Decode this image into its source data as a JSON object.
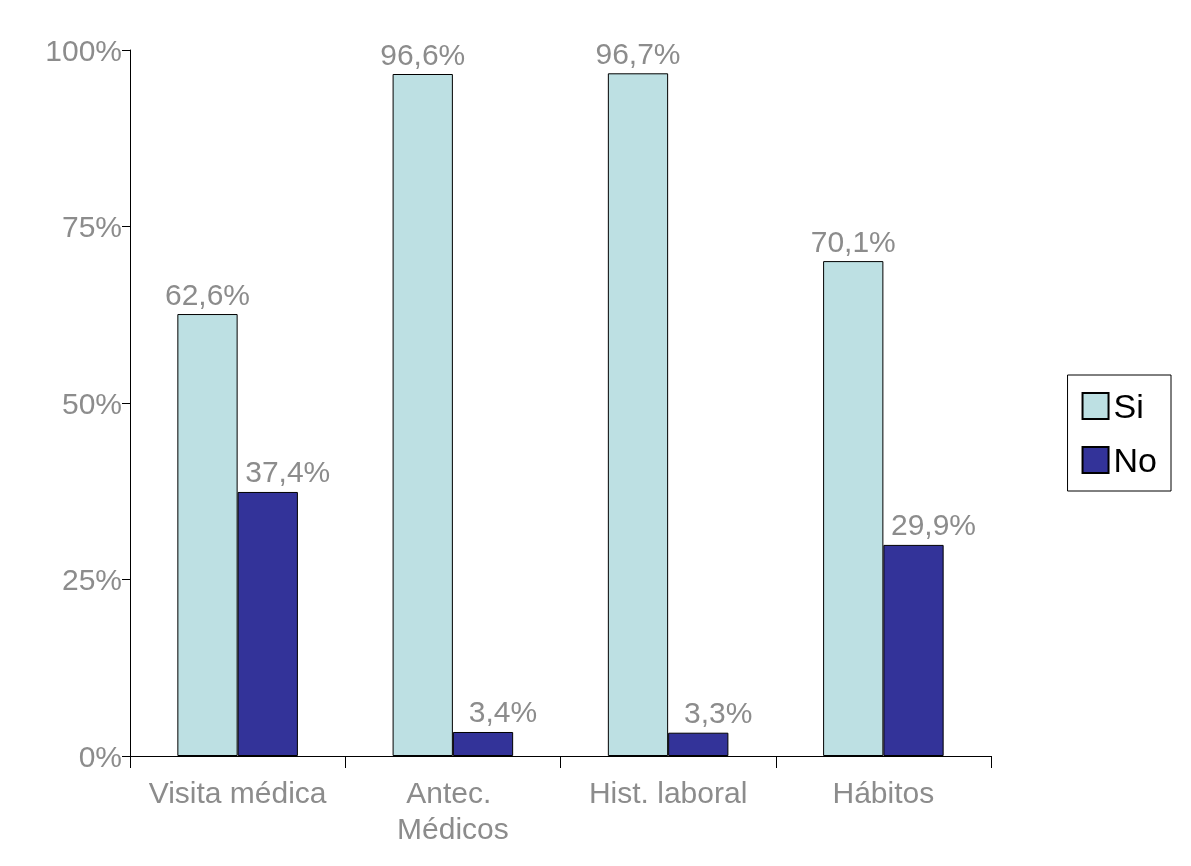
{
  "chart_data": {
    "type": "bar",
    "categories": [
      "Visita médica",
      "Antec. Médicos",
      "Hist. laboral",
      "Hábitos"
    ],
    "series": [
      {
        "name": "Si",
        "color": "#bde0e3",
        "values": [
          62.6,
          96.6,
          96.7,
          70.1
        ],
        "value_labels": [
          "62,6%",
          "96,6%",
          "96,7%",
          "70,1%"
        ]
      },
      {
        "name": "No",
        "color": "#333399",
        "values": [
          37.4,
          3.4,
          3.3,
          29.9
        ],
        "value_labels": [
          "37,4%",
          "3,4%",
          "3,3%",
          "29,9%"
        ]
      }
    ],
    "ylim": [
      0,
      100
    ],
    "yticks": [
      {
        "value": 0,
        "label": "0%"
      },
      {
        "value": 25,
        "label": "25%"
      },
      {
        "value": 50,
        "label": "50%"
      },
      {
        "value": 75,
        "label": "75%"
      },
      {
        "value": 100,
        "label": "100%"
      }
    ],
    "grid": false,
    "legend": "right"
  }
}
